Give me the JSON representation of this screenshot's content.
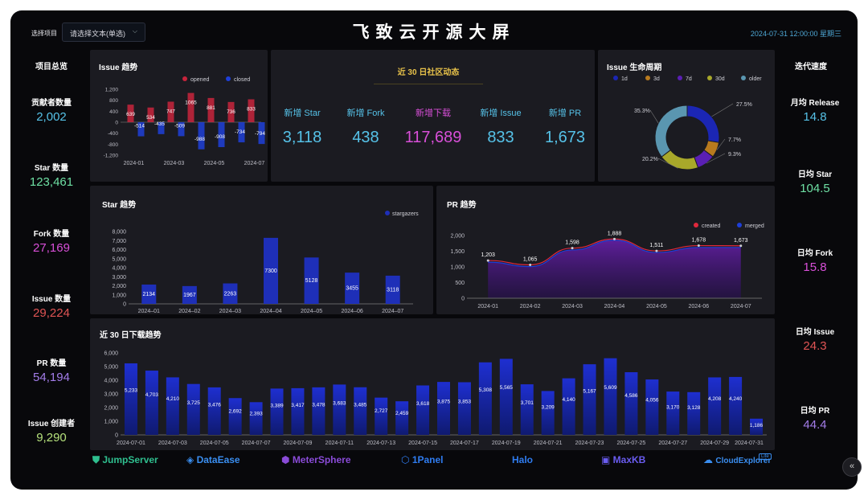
{
  "header": {
    "select_label": "选择项目",
    "select_value": "请选择文本(单选)",
    "title": "飞致云开源大屏",
    "datetime": "2024-07-31  12:00:00  星期三"
  },
  "left_stats": {
    "heading": "项目总览",
    "items": [
      {
        "label": "贡献者数量",
        "value": "2,002",
        "color": "#56c2e8"
      },
      {
        "label": "Star 数量",
        "value": "123,461",
        "color": "#6ee0a4"
      },
      {
        "label": "Fork 数量",
        "value": "27,169",
        "color": "#d84fd8"
      },
      {
        "label": "Issue 数量",
        "value": "29,224",
        "color": "#e05454"
      },
      {
        "label": "PR 数量",
        "value": "54,194",
        "color": "#a27ce8"
      },
      {
        "label": "Issue 创建者",
        "value": "9,290",
        "color": "#b5e07c"
      }
    ]
  },
  "right_stats": {
    "heading": "迭代速度",
    "items": [
      {
        "label": "月均 Release",
        "value": "14.8",
        "color": "#56c2e8"
      },
      {
        "label": "日均 Star",
        "value": "104.5",
        "color": "#6ee0a4"
      },
      {
        "label": "日均 Fork",
        "value": "15.8",
        "color": "#d84fd8"
      },
      {
        "label": "日均 Issue",
        "value": "24.3",
        "color": "#e05454"
      },
      {
        "label": "日均 PR",
        "value": "44.4",
        "color": "#a27ce8"
      }
    ]
  },
  "community": {
    "title": "近 30 日社区动态",
    "items": [
      {
        "label": "新增 Star",
        "value": "3,118",
        "color": "#56c2e8"
      },
      {
        "label": "新增 Fork",
        "value": "438",
        "color": "#56c2e8"
      },
      {
        "label": "新增下载",
        "value": "117,689",
        "color": "#d84fd8"
      },
      {
        "label": "新增 Issue",
        "value": "833",
        "color": "#56c2e8"
      },
      {
        "label": "新增 PR",
        "value": "1,673",
        "color": "#56c2e8"
      }
    ]
  },
  "panels": {
    "issue_trend": "Issue 趋势",
    "issue_lifecycle": "Issue 生命周期",
    "star_trend": "Star 趋势",
    "pr_trend": "PR 趋势",
    "downloads": "近 30 日下载趋势"
  },
  "logos": [
    {
      "name": "JumpServer",
      "color": "#2fbf8f"
    },
    {
      "name": "DataEase",
      "color": "#3a8ef0"
    },
    {
      "name": "MeterSphere",
      "color": "#8a4bd8"
    },
    {
      "name": "1Panel",
      "color": "#2f7cf0"
    },
    {
      "name": "Halo",
      "color": "#2f7cf0"
    },
    {
      "name": "MaxKB",
      "color": "#6a5cf0"
    },
    {
      "name": "CloudExplorer",
      "color": "#3a8ef0"
    }
  ],
  "logo_badge": "Lite",
  "chart_data": [
    {
      "id": "issue_trend",
      "type": "bar",
      "categories": [
        "2024-01",
        "2024-02",
        "2024-03",
        "2024-04",
        "2024-05",
        "2024-06",
        "2024-07"
      ],
      "x_tick_labels": [
        "2024-01",
        "2024-03",
        "2024-05",
        "2024-07"
      ],
      "series": [
        {
          "name": "opened",
          "values": [
            639,
            534,
            747,
            1065,
            881,
            736,
            833
          ],
          "color": "#c8243c"
        },
        {
          "name": "closed",
          "values": [
            -514,
            -435,
            -509,
            -988,
            -908,
            -734,
            -794
          ],
          "color": "#1e3fd8"
        }
      ],
      "ylim": [
        -1200,
        1200
      ],
      "yticks": [
        "1,200",
        "800",
        "400",
        "0",
        "-400",
        "-800",
        "-1,200"
      ],
      "legend": "top-right"
    },
    {
      "id": "issue_lifecycle",
      "type": "pie",
      "slices": [
        {
          "name": "1d",
          "value": 27.5,
          "color": "#1b26b4"
        },
        {
          "name": "3d",
          "value": 7.7,
          "color": "#b87a1e"
        },
        {
          "name": "7d",
          "value": 9.3,
          "color": "#5a1fb4"
        },
        {
          "name": "30d",
          "value": 20.2,
          "color": "#a8a82a"
        },
        {
          "name": "older",
          "value": 35.3,
          "color": "#5a96b0"
        }
      ],
      "labels": [
        "27.5%",
        "7.7%",
        "9.3%",
        "20.2%",
        "35.3%"
      ],
      "legend": "top"
    },
    {
      "id": "star_trend",
      "type": "bar",
      "categories": [
        "2024–01",
        "2024–02",
        "2024–03",
        "2024–04",
        "2024–05",
        "2024–06",
        "2024–07"
      ],
      "series": [
        {
          "name": "stargazers",
          "values": [
            2134,
            1967,
            2263,
            7300,
            5128,
            3455,
            3118
          ],
          "color": "#1e2fb8"
        }
      ],
      "ylim": [
        0,
        8000
      ],
      "yticks": [
        "8,000",
        "7,000",
        "6,000",
        "5,000",
        "4,000",
        "3,000",
        "2,000",
        "1,000",
        "0"
      ],
      "legend": "top-right"
    },
    {
      "id": "pr_trend",
      "type": "area",
      "categories": [
        "2024-01",
        "2024-02",
        "2024-03",
        "2024-04",
        "2024-05",
        "2024-06",
        "2024-07"
      ],
      "series": [
        {
          "name": "created",
          "values": [
            1203,
            1065,
            1598,
            1888,
            1511,
            1678,
            1673
          ],
          "color": "#e0283c"
        },
        {
          "name": "merged",
          "values": [
            1150,
            1010,
            1540,
            1850,
            1460,
            1620,
            1620
          ],
          "color": "#1e3fd8"
        }
      ],
      "data_labels": [
        "1,203",
        "1,065",
        "1,598",
        "1,888",
        "1,511",
        "1,678",
        "1,673"
      ],
      "ylim": [
        0,
        2000
      ],
      "yticks": [
        "2,000",
        "1,500",
        "1,000",
        "500",
        "0"
      ],
      "legend": "top-right"
    },
    {
      "id": "downloads",
      "type": "bar",
      "categories": [
        "2024-07-01",
        "2024-07-02",
        "2024-07-03",
        "2024-07-04",
        "2024-07-05",
        "2024-07-06",
        "2024-07-07",
        "2024-07-08",
        "2024-07-09",
        "2024-07-10",
        "2024-07-11",
        "2024-07-12",
        "2024-07-13",
        "2024-07-14",
        "2024-07-15",
        "2024-07-16",
        "2024-07-17",
        "2024-07-18",
        "2024-07-19",
        "2024-07-20",
        "2024-07-21",
        "2024-07-22",
        "2024-07-23",
        "2024-07-24",
        "2024-07-25",
        "2024-07-26",
        "2024-07-27",
        "2024-07-28",
        "2024-07-29",
        "2024-07-30",
        "2024-07-31"
      ],
      "x_tick_labels": [
        "2024-07-01",
        "2024-07-03",
        "2024-07-05",
        "2024-07-07",
        "2024-07-09",
        "2024-07-11",
        "2024-07-13",
        "2024-07-15",
        "2024-07-17",
        "2024-07-19",
        "2024-07-21",
        "2024-07-23",
        "2024-07-25",
        "2024-07-27",
        "2024-07-29",
        "2024-07-31"
      ],
      "values": [
        5233,
        4703,
        4210,
        3725,
        3476,
        2692,
        2393,
        3389,
        3417,
        3478,
        3683,
        3485,
        2727,
        2459,
        3618,
        3875,
        3853,
        5308,
        5565,
        3701,
        3209,
        4140,
        5167,
        5609,
        4586,
        4056,
        3170,
        3128,
        4208,
        4240,
        1186
      ],
      "data_labels": [
        "5,233",
        "4,703",
        "4,210",
        "3,725",
        "3,476",
        "2,692",
        "2,393",
        "3,389",
        "3,417",
        "3,478",
        "3,683",
        "3,485",
        "2,727",
        "2,459",
        "3,618",
        "3,875",
        "3,853",
        "5,308",
        "5,565",
        "3,701",
        "3,209",
        "4,140",
        "5,167",
        "5,609",
        "4,586",
        "4,056",
        "3,170",
        "3,128",
        "4,208",
        "4,240",
        "1,186"
      ],
      "ylim": [
        0,
        6000
      ],
      "yticks": [
        "6,000",
        "5,000",
        "4,000",
        "3,000",
        "2,000",
        "1,000",
        "0"
      ]
    }
  ]
}
